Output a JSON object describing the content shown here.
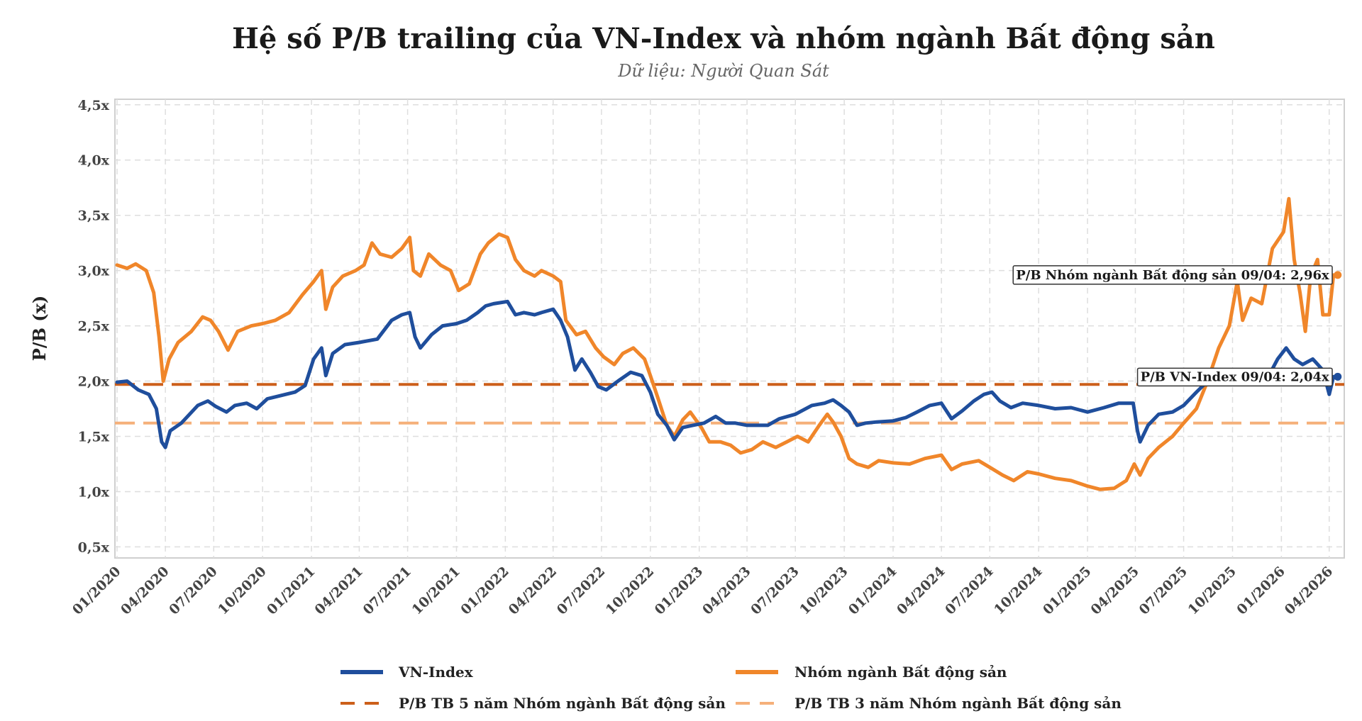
{
  "chart_data": {
    "type": "line",
    "title": "Hệ số P/B trailing của VN-Index và nhóm ngành Bất động sản",
    "subtitle": "Dữ liệu: Người Quan Sát",
    "ylabel": "P/B (x)",
    "xlabel": "",
    "ylim": [
      0.4,
      4.55
    ],
    "y_ticks": [
      0.5,
      1.0,
      1.5,
      2.0,
      2.5,
      3.0,
      3.5,
      4.0,
      4.5
    ],
    "y_tick_labels": [
      "0,5x",
      "1,0x",
      "1,5x",
      "2,0x",
      "2,5x",
      "3,0x",
      "3,5x",
      "4,0x",
      "4,5x"
    ],
    "x_range": [
      "2020-01-01",
      "2026-04-20"
    ],
    "x_ticks": [
      "2020-01-01",
      "2020-04-01",
      "2020-07-01",
      "2020-10-01",
      "2021-01-01",
      "2021-04-01",
      "2021-07-01",
      "2021-10-01",
      "2022-01-01",
      "2022-04-01",
      "2022-07-01",
      "2022-10-01",
      "2023-01-01",
      "2023-04-01",
      "2023-07-01",
      "2023-10-01",
      "2024-01-01",
      "2024-04-01",
      "2024-07-01",
      "2024-10-01",
      "2025-01-01",
      "2025-04-01",
      "2025-07-01",
      "2025-10-01",
      "2026-01-01",
      "2026-04-01"
    ],
    "x_tick_labels": [
      "01/2020",
      "04/2020",
      "07/2020",
      "10/2020",
      "01/2021",
      "04/2021",
      "07/2021",
      "10/2021",
      "01/2022",
      "04/2022",
      "07/2022",
      "10/2022",
      "01/2023",
      "04/2023",
      "07/2023",
      "10/2023",
      "01/2024",
      "04/2024",
      "07/2024",
      "10/2024",
      "01/2025",
      "04/2025",
      "07/2025",
      "10/2025",
      "01/2026",
      "04/2026"
    ],
    "grid": true,
    "legend_position": "bottom",
    "series": [
      {
        "name": "VN-Index",
        "color": "#1f4e9c",
        "points": [
          [
            "2020-01-01",
            1.99
          ],
          [
            "2020-01-20",
            2.0
          ],
          [
            "2020-02-10",
            1.92
          ],
          [
            "2020-03-01",
            1.88
          ],
          [
            "2020-03-15",
            1.75
          ],
          [
            "2020-03-25",
            1.45
          ],
          [
            "2020-04-01",
            1.4
          ],
          [
            "2020-04-10",
            1.55
          ],
          [
            "2020-05-01",
            1.62
          ],
          [
            "2020-06-01",
            1.78
          ],
          [
            "2020-06-20",
            1.82
          ],
          [
            "2020-07-05",
            1.77
          ],
          [
            "2020-07-25",
            1.72
          ],
          [
            "2020-08-10",
            1.78
          ],
          [
            "2020-09-01",
            1.8
          ],
          [
            "2020-09-20",
            1.75
          ],
          [
            "2020-10-10",
            1.84
          ],
          [
            "2020-11-05",
            1.87
          ],
          [
            "2020-12-01",
            1.9
          ],
          [
            "2020-12-20",
            1.96
          ],
          [
            "2021-01-05",
            2.2
          ],
          [
            "2021-01-20",
            2.3
          ],
          [
            "2021-01-28",
            2.05
          ],
          [
            "2021-02-10",
            2.25
          ],
          [
            "2021-03-05",
            2.33
          ],
          [
            "2021-04-01",
            2.35
          ],
          [
            "2021-05-05",
            2.38
          ],
          [
            "2021-06-01",
            2.55
          ],
          [
            "2021-06-20",
            2.6
          ],
          [
            "2021-07-05",
            2.62
          ],
          [
            "2021-07-15",
            2.4
          ],
          [
            "2021-07-25",
            2.3
          ],
          [
            "2021-08-15",
            2.42
          ],
          [
            "2021-09-05",
            2.5
          ],
          [
            "2021-10-01",
            2.52
          ],
          [
            "2021-10-20",
            2.55
          ],
          [
            "2021-11-10",
            2.62
          ],
          [
            "2021-11-25",
            2.68
          ],
          [
            "2021-12-10",
            2.7
          ],
          [
            "2022-01-05",
            2.72
          ],
          [
            "2022-01-20",
            2.6
          ],
          [
            "2022-02-05",
            2.62
          ],
          [
            "2022-02-25",
            2.6
          ],
          [
            "2022-03-10",
            2.62
          ],
          [
            "2022-04-01",
            2.65
          ],
          [
            "2022-04-15",
            2.55
          ],
          [
            "2022-04-28",
            2.4
          ],
          [
            "2022-05-12",
            2.1
          ],
          [
            "2022-05-25",
            2.2
          ],
          [
            "2022-06-10",
            2.08
          ],
          [
            "2022-06-25",
            1.95
          ],
          [
            "2022-07-10",
            1.92
          ],
          [
            "2022-08-01",
            2.0
          ],
          [
            "2022-08-25",
            2.08
          ],
          [
            "2022-09-15",
            2.05
          ],
          [
            "2022-10-01",
            1.9
          ],
          [
            "2022-10-15",
            1.7
          ],
          [
            "2022-11-01",
            1.6
          ],
          [
            "2022-11-15",
            1.47
          ],
          [
            "2022-12-01",
            1.58
          ],
          [
            "2022-12-20",
            1.6
          ],
          [
            "2023-01-10",
            1.62
          ],
          [
            "2023-02-01",
            1.68
          ],
          [
            "2023-02-20",
            1.62
          ],
          [
            "2023-03-10",
            1.62
          ],
          [
            "2023-04-01",
            1.6
          ],
          [
            "2023-04-20",
            1.6
          ],
          [
            "2023-05-10",
            1.6
          ],
          [
            "2023-06-01",
            1.66
          ],
          [
            "2023-07-01",
            1.7
          ],
          [
            "2023-08-01",
            1.78
          ],
          [
            "2023-08-25",
            1.8
          ],
          [
            "2023-09-10",
            1.83
          ],
          [
            "2023-09-25",
            1.78
          ],
          [
            "2023-10-10",
            1.72
          ],
          [
            "2023-10-25",
            1.6
          ],
          [
            "2023-11-10",
            1.62
          ],
          [
            "2023-12-01",
            1.63
          ],
          [
            "2024-01-01",
            1.64
          ],
          [
            "2024-01-25",
            1.67
          ],
          [
            "2024-02-15",
            1.72
          ],
          [
            "2024-03-10",
            1.78
          ],
          [
            "2024-04-01",
            1.8
          ],
          [
            "2024-04-20",
            1.66
          ],
          [
            "2024-05-10",
            1.73
          ],
          [
            "2024-06-01",
            1.82
          ],
          [
            "2024-06-20",
            1.88
          ],
          [
            "2024-07-05",
            1.9
          ],
          [
            "2024-07-20",
            1.82
          ],
          [
            "2024-08-10",
            1.76
          ],
          [
            "2024-09-01",
            1.8
          ],
          [
            "2024-10-01",
            1.78
          ],
          [
            "2024-11-01",
            1.75
          ],
          [
            "2024-12-01",
            1.76
          ],
          [
            "2025-01-01",
            1.72
          ],
          [
            "2025-02-01",
            1.76
          ],
          [
            "2025-03-01",
            1.8
          ],
          [
            "2025-03-28",
            1.8
          ],
          [
            "2025-04-05",
            1.55
          ],
          [
            "2025-04-10",
            1.45
          ],
          [
            "2025-04-25",
            1.6
          ],
          [
            "2025-05-15",
            1.7
          ],
          [
            "2025-06-10",
            1.72
          ],
          [
            "2025-07-01",
            1.78
          ],
          [
            "2025-07-25",
            1.9
          ],
          [
            "2025-08-15",
            2.0
          ],
          [
            "2025-09-05",
            2.04
          ],
          [
            "2025-09-25",
            2.02
          ],
          [
            "2025-10-10",
            2.1
          ],
          [
            "2025-10-25",
            1.98
          ],
          [
            "2025-11-15",
            2.05
          ],
          [
            "2025-12-05",
            2.02
          ],
          [
            "2025-12-25",
            2.2
          ],
          [
            "2026-01-10",
            2.3
          ],
          [
            "2026-01-25",
            2.2
          ],
          [
            "2026-02-10",
            2.15
          ],
          [
            "2026-03-01",
            2.2
          ],
          [
            "2026-03-20",
            2.1
          ],
          [
            "2026-04-01",
            1.88
          ],
          [
            "2026-04-09",
            2.04
          ]
        ]
      },
      {
        "name": "Nhóm ngành Bất động sản",
        "color": "#f0862a",
        "points": [
          [
            "2020-01-01",
            3.05
          ],
          [
            "2020-01-20",
            3.02
          ],
          [
            "2020-02-05",
            3.06
          ],
          [
            "2020-02-25",
            3.0
          ],
          [
            "2020-03-10",
            2.8
          ],
          [
            "2020-03-20",
            2.4
          ],
          [
            "2020-03-28",
            2.0
          ],
          [
            "2020-04-08",
            2.2
          ],
          [
            "2020-04-25",
            2.35
          ],
          [
            "2020-05-20",
            2.45
          ],
          [
            "2020-06-10",
            2.58
          ],
          [
            "2020-06-25",
            2.55
          ],
          [
            "2020-07-10",
            2.45
          ],
          [
            "2020-07-28",
            2.28
          ],
          [
            "2020-08-15",
            2.45
          ],
          [
            "2020-09-10",
            2.5
          ],
          [
            "2020-10-01",
            2.52
          ],
          [
            "2020-10-25",
            2.55
          ],
          [
            "2020-11-20",
            2.62
          ],
          [
            "2020-12-15",
            2.78
          ],
          [
            "2021-01-05",
            2.9
          ],
          [
            "2021-01-20",
            3.0
          ],
          [
            "2021-01-28",
            2.65
          ],
          [
            "2021-02-10",
            2.85
          ],
          [
            "2021-03-01",
            2.95
          ],
          [
            "2021-03-25",
            3.0
          ],
          [
            "2021-04-10",
            3.05
          ],
          [
            "2021-04-25",
            3.25
          ],
          [
            "2021-05-10",
            3.15
          ],
          [
            "2021-06-01",
            3.12
          ],
          [
            "2021-06-20",
            3.2
          ],
          [
            "2021-07-05",
            3.3
          ],
          [
            "2021-07-12",
            3.0
          ],
          [
            "2021-07-25",
            2.95
          ],
          [
            "2021-08-10",
            3.15
          ],
          [
            "2021-09-01",
            3.05
          ],
          [
            "2021-09-20",
            3.0
          ],
          [
            "2021-10-05",
            2.82
          ],
          [
            "2021-10-25",
            2.88
          ],
          [
            "2021-11-15",
            3.15
          ],
          [
            "2021-11-30",
            3.25
          ],
          [
            "2021-12-20",
            3.33
          ],
          [
            "2022-01-05",
            3.3
          ],
          [
            "2022-01-20",
            3.1
          ],
          [
            "2022-02-05",
            3.0
          ],
          [
            "2022-02-25",
            2.95
          ],
          [
            "2022-03-10",
            3.0
          ],
          [
            "2022-04-01",
            2.95
          ],
          [
            "2022-04-15",
            2.9
          ],
          [
            "2022-04-25",
            2.55
          ],
          [
            "2022-05-15",
            2.42
          ],
          [
            "2022-06-01",
            2.45
          ],
          [
            "2022-06-20",
            2.3
          ],
          [
            "2022-07-05",
            2.22
          ],
          [
            "2022-07-25",
            2.15
          ],
          [
            "2022-08-10",
            2.25
          ],
          [
            "2022-08-30",
            2.3
          ],
          [
            "2022-09-20",
            2.2
          ],
          [
            "2022-10-01",
            2.05
          ],
          [
            "2022-10-15",
            1.85
          ],
          [
            "2022-11-01",
            1.6
          ],
          [
            "2022-11-15",
            1.5
          ],
          [
            "2022-12-01",
            1.65
          ],
          [
            "2022-12-15",
            1.72
          ],
          [
            "2023-01-05",
            1.58
          ],
          [
            "2023-01-20",
            1.45
          ],
          [
            "2023-02-10",
            1.45
          ],
          [
            "2023-03-01",
            1.42
          ],
          [
            "2023-03-20",
            1.35
          ],
          [
            "2023-04-10",
            1.38
          ],
          [
            "2023-05-01",
            1.45
          ],
          [
            "2023-05-25",
            1.4
          ],
          [
            "2023-06-15",
            1.45
          ],
          [
            "2023-07-05",
            1.5
          ],
          [
            "2023-07-25",
            1.45
          ],
          [
            "2023-08-15",
            1.6
          ],
          [
            "2023-08-30",
            1.7
          ],
          [
            "2023-09-10",
            1.63
          ],
          [
            "2023-09-25",
            1.5
          ],
          [
            "2023-10-10",
            1.3
          ],
          [
            "2023-10-25",
            1.25
          ],
          [
            "2023-11-15",
            1.22
          ],
          [
            "2023-12-05",
            1.28
          ],
          [
            "2024-01-01",
            1.26
          ],
          [
            "2024-02-01",
            1.25
          ],
          [
            "2024-03-01",
            1.3
          ],
          [
            "2024-04-01",
            1.33
          ],
          [
            "2024-04-20",
            1.2
          ],
          [
            "2024-05-10",
            1.25
          ],
          [
            "2024-06-10",
            1.28
          ],
          [
            "2024-07-01",
            1.22
          ],
          [
            "2024-07-25",
            1.15
          ],
          [
            "2024-08-15",
            1.1
          ],
          [
            "2024-09-10",
            1.18
          ],
          [
            "2024-10-01",
            1.16
          ],
          [
            "2024-11-01",
            1.12
          ],
          [
            "2024-12-01",
            1.1
          ],
          [
            "2025-01-01",
            1.05
          ],
          [
            "2025-01-25",
            1.02
          ],
          [
            "2025-02-20",
            1.03
          ],
          [
            "2025-03-15",
            1.1
          ],
          [
            "2025-03-30",
            1.25
          ],
          [
            "2025-04-10",
            1.15
          ],
          [
            "2025-04-25",
            1.3
          ],
          [
            "2025-05-15",
            1.4
          ],
          [
            "2025-06-10",
            1.5
          ],
          [
            "2025-07-01",
            1.62
          ],
          [
            "2025-07-25",
            1.75
          ],
          [
            "2025-08-15",
            2.0
          ],
          [
            "2025-09-05",
            2.3
          ],
          [
            "2025-09-25",
            2.5
          ],
          [
            "2025-10-10",
            2.9
          ],
          [
            "2025-10-20",
            2.55
          ],
          [
            "2025-11-05",
            2.75
          ],
          [
            "2025-11-25",
            2.7
          ],
          [
            "2025-12-15",
            3.2
          ],
          [
            "2026-01-05",
            3.35
          ],
          [
            "2026-01-15",
            3.65
          ],
          [
            "2026-01-25",
            3.1
          ],
          [
            "2026-02-05",
            2.8
          ],
          [
            "2026-02-15",
            2.45
          ],
          [
            "2026-02-25",
            2.95
          ],
          [
            "2026-03-10",
            3.1
          ],
          [
            "2026-03-20",
            2.6
          ],
          [
            "2026-04-01",
            2.6
          ],
          [
            "2026-04-09",
            2.96
          ]
        ]
      },
      {
        "name": "P/B TB 5 năm Nhóm ngành Bất động sản",
        "color": "#cc5f1a",
        "constant": 1.97,
        "style": "dashed"
      },
      {
        "name": "P/B TB 3 năm Nhóm ngành Bất động sản",
        "color": "#f5b07a",
        "constant": 1.62,
        "style": "dashed"
      }
    ],
    "annotations": [
      {
        "series": "Nhóm ngành Bất động sản",
        "date": "2026-04-09",
        "value": 2.96,
        "text": "P/B Nhóm ngành Bất động sản 09/04: 2,96x"
      },
      {
        "series": "VN-Index",
        "date": "2026-04-09",
        "value": 2.04,
        "text": "P/B VN-Index 09/04: 2,04x"
      }
    ]
  }
}
